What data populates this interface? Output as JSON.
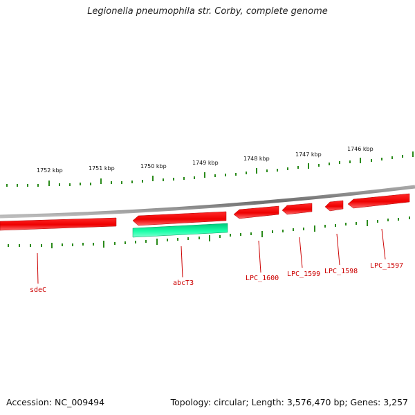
{
  "title": "Legionella pneumophila str. Corby, complete genome",
  "footer": {
    "accession": "Accession: NC_009494",
    "stats": "Topology: circular; Length: 3,576,470 bp; Genes: 3,257"
  },
  "colors": {
    "forward_gene": "#ff0000",
    "reverse_gene": "#00e08a",
    "backbone": "#8a8a8a",
    "ticks": "#2a8a1a",
    "gene_label": "#cc0000"
  },
  "scale_labels": [
    "1752 kbp",
    "1751 kbp",
    "1750 kbp",
    "1749 kbp",
    "1748 kbp",
    "1747 kbp",
    "1746 kbp"
  ],
  "gene_labels": [
    "sdeC",
    "abcT3",
    "LPC_1600",
    "LPC_1599",
    "LPC_1598",
    "LPC_1597"
  ]
}
